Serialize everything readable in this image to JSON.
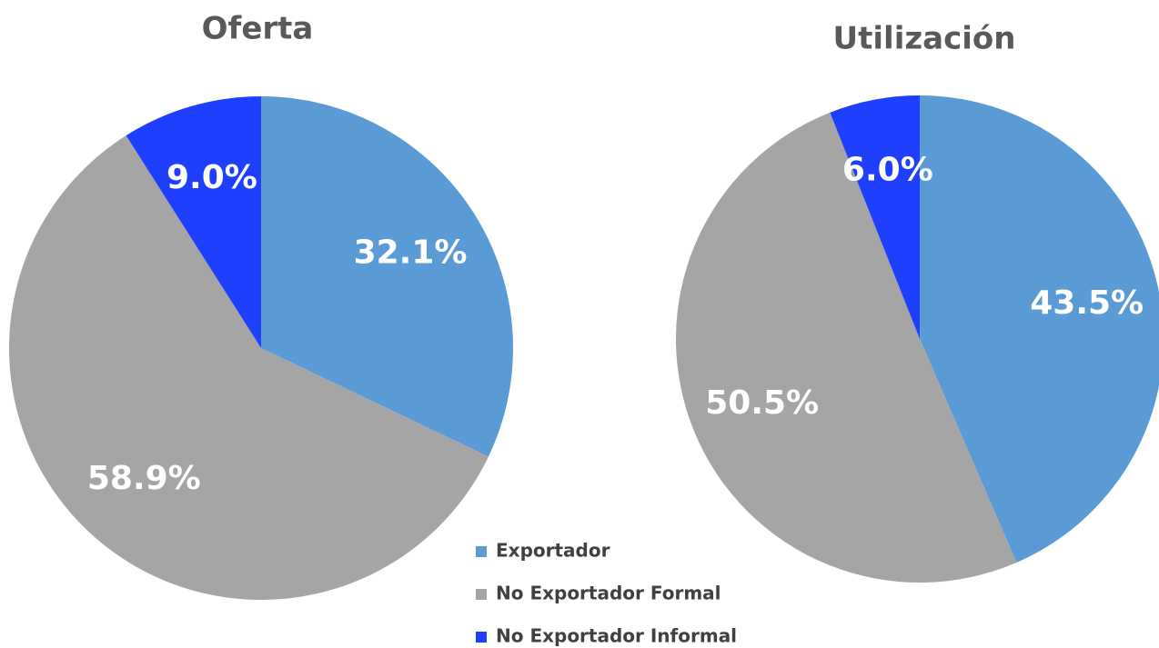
{
  "chart_data": [
    {
      "type": "pie",
      "title": "Oferta",
      "values": [
        32.1,
        58.9,
        9.0
      ],
      "value_labels": [
        "32.1%",
        "58.9%",
        "9.0%"
      ]
    },
    {
      "type": "pie",
      "title": "Utilización",
      "values": [
        43.5,
        50.5,
        6.0
      ],
      "value_labels": [
        "43.5%",
        "50.5%",
        "6.0%"
      ]
    }
  ],
  "legend": {
    "categories": [
      "Exportador",
      "No Exportador Formal",
      "No Exportador Informal"
    ],
    "colors": [
      "#5b9bd5",
      "#a5a5a5",
      "#1f3fff"
    ]
  }
}
